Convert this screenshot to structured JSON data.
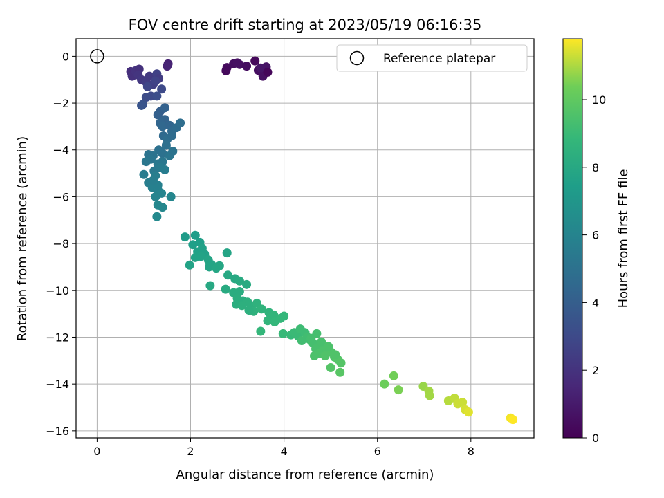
{
  "chart_data": {
    "type": "scatter",
    "title": "FOV centre drift starting at 2023/05/19 06:16:35",
    "xlabel": "Angular distance from reference (arcmin)",
    "ylabel": "Rotation from reference (arcmin)",
    "xlim": [
      -0.45,
      9.35
    ],
    "ylim": [
      -16.3,
      0.75
    ],
    "xticks": [
      0,
      2,
      4,
      6,
      8
    ],
    "yticks": [
      0,
      -2,
      -4,
      -6,
      -8,
      -10,
      -12,
      -14,
      -16
    ],
    "grid": true,
    "legend": {
      "position": "upper-right",
      "entries": [
        "Reference platepar"
      ]
    },
    "colormap": "viridis",
    "colorbar": {
      "label": "Hours from first FF file",
      "range": [
        0,
        11.8
      ],
      "ticks": [
        0,
        2,
        4,
        6,
        8,
        10
      ]
    },
    "reference_point": {
      "x": 0,
      "y": 0,
      "label": "Reference platepar"
    },
    "series": [
      {
        "marker": "filled-circle",
        "points": [
          [
            2.78,
            -0.48,
            0.4
          ],
          [
            2.92,
            -0.32,
            0.5
          ],
          [
            3.05,
            -0.35,
            0.6
          ],
          [
            3.2,
            -0.42,
            0.5
          ],
          [
            2.76,
            -0.62,
            0.3
          ],
          [
            3.0,
            -0.28,
            0.6
          ],
          [
            3.38,
            -0.2,
            0.3
          ],
          [
            3.45,
            -0.6,
            0.5
          ],
          [
            3.58,
            -0.72,
            0.4
          ],
          [
            3.62,
            -0.45,
            0.7
          ],
          [
            3.55,
            -0.85,
            0.6
          ],
          [
            3.5,
            -0.5,
            0.8
          ],
          [
            3.65,
            -0.68,
            0.2
          ],
          [
            1.52,
            -0.32,
            1.3
          ],
          [
            1.5,
            -0.42,
            1.4
          ],
          [
            0.72,
            -0.65,
            1.8
          ],
          [
            0.75,
            -0.85,
            1.9
          ],
          [
            0.82,
            -0.62,
            2.0
          ],
          [
            0.9,
            -0.55,
            1.9
          ],
          [
            0.88,
            -0.8,
            2.1
          ],
          [
            0.95,
            -1.0,
            2.2
          ],
          [
            1.05,
            -1.1,
            2.4
          ],
          [
            1.12,
            -0.85,
            2.3
          ],
          [
            1.2,
            -1.2,
            2.5
          ],
          [
            1.28,
            -0.75,
            2.6
          ],
          [
            1.32,
            -0.95,
            2.4
          ],
          [
            1.25,
            -1.05,
            2.7
          ],
          [
            1.08,
            -1.3,
            2.8
          ],
          [
            1.15,
            -1.7,
            3.0
          ],
          [
            1.05,
            -1.75,
            3.1
          ],
          [
            1.38,
            -1.4,
            3.0
          ],
          [
            1.28,
            -1.7,
            3.2
          ],
          [
            0.98,
            -2.05,
            3.4
          ],
          [
            0.95,
            -2.1,
            3.5
          ],
          [
            1.35,
            -2.35,
            4.0
          ],
          [
            1.45,
            -2.2,
            4.2
          ],
          [
            1.3,
            -2.5,
            4.1
          ],
          [
            1.45,
            -2.7,
            4.3
          ],
          [
            1.35,
            -2.85,
            4.4
          ],
          [
            1.4,
            -3.0,
            4.5
          ],
          [
            1.55,
            -2.95,
            4.4
          ],
          [
            1.6,
            -3.2,
            4.6
          ],
          [
            1.7,
            -3.05,
            4.7
          ],
          [
            1.78,
            -2.85,
            4.8
          ],
          [
            1.42,
            -3.4,
            4.6
          ],
          [
            1.5,
            -3.55,
            4.8
          ],
          [
            1.6,
            -3.4,
            4.7
          ],
          [
            1.48,
            -3.8,
            4.9
          ],
          [
            1.32,
            -4.0,
            5.0
          ],
          [
            1.4,
            -4.15,
            5.0
          ],
          [
            1.2,
            -4.25,
            5.1
          ],
          [
            1.1,
            -4.2,
            5.1
          ],
          [
            1.55,
            -4.25,
            5.2
          ],
          [
            1.62,
            -4.05,
            5.1
          ],
          [
            1.15,
            -4.4,
            5.2
          ],
          [
            1.05,
            -4.5,
            5.3
          ],
          [
            1.3,
            -4.6,
            5.4
          ],
          [
            1.4,
            -4.5,
            5.3
          ],
          [
            1.22,
            -4.9,
            5.4
          ],
          [
            1.35,
            -4.75,
            5.5
          ],
          [
            1.45,
            -4.85,
            5.6
          ],
          [
            1.0,
            -5.05,
            5.6
          ],
          [
            1.25,
            -5.1,
            5.7
          ],
          [
            1.1,
            -5.4,
            5.7
          ],
          [
            1.18,
            -5.6,
            5.8
          ],
          [
            1.3,
            -5.7,
            5.9
          ],
          [
            1.38,
            -5.85,
            6.0
          ],
          [
            1.25,
            -6.0,
            6.0
          ],
          [
            1.58,
            -6.0,
            6.1
          ],
          [
            1.3,
            -6.35,
            6.2
          ],
          [
            1.4,
            -6.45,
            6.2
          ],
          [
            1.28,
            -6.85,
            6.3
          ],
          [
            1.3,
            -5.5,
            5.8
          ],
          [
            1.2,
            -5.3,
            5.7
          ],
          [
            1.88,
            -7.72,
            7.3
          ],
          [
            2.1,
            -7.65,
            7.4
          ],
          [
            2.05,
            -8.05,
            7.5
          ],
          [
            2.2,
            -7.95,
            7.5
          ],
          [
            2.25,
            -8.2,
            7.6
          ],
          [
            2.15,
            -8.35,
            7.6
          ],
          [
            2.3,
            -8.45,
            7.6
          ],
          [
            2.1,
            -8.6,
            7.7
          ],
          [
            2.22,
            -8.55,
            7.7
          ],
          [
            2.38,
            -8.7,
            7.8
          ],
          [
            2.45,
            -8.9,
            7.8
          ],
          [
            1.98,
            -8.92,
            7.7
          ],
          [
            2.4,
            -9.0,
            7.8
          ],
          [
            2.55,
            -9.05,
            7.9
          ],
          [
            2.62,
            -8.95,
            7.9
          ],
          [
            2.78,
            -8.4,
            7.8
          ],
          [
            2.8,
            -9.35,
            8.0
          ],
          [
            2.42,
            -9.8,
            8.0
          ],
          [
            2.95,
            -9.5,
            8.0
          ],
          [
            3.05,
            -9.6,
            8.1
          ],
          [
            3.2,
            -9.75,
            8.1
          ],
          [
            2.75,
            -9.95,
            8.1
          ],
          [
            2.92,
            -10.1,
            8.2
          ],
          [
            3.05,
            -10.05,
            8.2
          ],
          [
            3.0,
            -10.35,
            8.3
          ],
          [
            3.12,
            -10.45,
            8.3
          ],
          [
            3.22,
            -10.5,
            8.4
          ],
          [
            2.98,
            -10.6,
            8.3
          ],
          [
            3.1,
            -10.65,
            8.4
          ],
          [
            3.3,
            -10.7,
            8.4
          ],
          [
            3.42,
            -10.55,
            8.5
          ],
          [
            3.35,
            -10.9,
            8.5
          ],
          [
            3.25,
            -10.85,
            8.4
          ],
          [
            3.52,
            -10.8,
            8.6
          ],
          [
            3.68,
            -10.95,
            8.6
          ],
          [
            3.78,
            -11.05,
            8.7
          ],
          [
            3.65,
            -11.3,
            8.7
          ],
          [
            3.8,
            -11.35,
            8.8
          ],
          [
            3.92,
            -11.2,
            8.8
          ],
          [
            4.0,
            -11.1,
            8.8
          ],
          [
            3.5,
            -11.75,
            8.8
          ],
          [
            3.98,
            -11.85,
            8.9
          ],
          [
            4.15,
            -11.9,
            8.9
          ],
          [
            4.3,
            -11.95,
            9.0
          ],
          [
            4.22,
            -11.8,
            9.0
          ],
          [
            4.35,
            -11.65,
            9.1
          ],
          [
            4.45,
            -11.8,
            9.1
          ],
          [
            4.5,
            -12.0,
            9.2
          ],
          [
            4.38,
            -12.15,
            9.2
          ],
          [
            4.55,
            -12.1,
            9.2
          ],
          [
            4.62,
            -12.25,
            9.3
          ],
          [
            4.7,
            -11.85,
            9.3
          ],
          [
            4.78,
            -12.35,
            9.4
          ],
          [
            4.68,
            -12.5,
            9.4
          ],
          [
            4.85,
            -12.45,
            9.5
          ],
          [
            4.92,
            -12.6,
            9.5
          ],
          [
            4.75,
            -12.7,
            9.5
          ],
          [
            5.02,
            -12.65,
            9.6
          ],
          [
            5.08,
            -12.85,
            9.6
          ],
          [
            4.65,
            -12.8,
            9.5
          ],
          [
            4.88,
            -12.8,
            9.6
          ],
          [
            5.15,
            -12.95,
            9.7
          ],
          [
            5.22,
            -13.1,
            9.7
          ],
          [
            5.0,
            -13.3,
            9.7
          ],
          [
            5.2,
            -13.5,
            9.8
          ],
          [
            4.58,
            -12.05,
            9.3
          ],
          [
            4.8,
            -12.2,
            9.4
          ],
          [
            4.95,
            -12.4,
            9.5
          ],
          [
            5.1,
            -12.75,
            9.6
          ],
          [
            6.15,
            -14.0,
            10.3
          ],
          [
            6.35,
            -13.65,
            10.4
          ],
          [
            6.45,
            -14.25,
            10.5
          ],
          [
            6.98,
            -14.1,
            10.8
          ],
          [
            7.1,
            -14.3,
            10.9
          ],
          [
            7.12,
            -14.5,
            10.9
          ],
          [
            7.52,
            -14.72,
            11.1
          ],
          [
            7.65,
            -14.6,
            11.2
          ],
          [
            7.72,
            -14.85,
            11.3
          ],
          [
            7.82,
            -14.78,
            11.3
          ],
          [
            7.88,
            -15.1,
            11.4
          ],
          [
            7.95,
            -15.2,
            11.5
          ],
          [
            8.85,
            -15.45,
            11.7
          ],
          [
            8.9,
            -15.52,
            11.8
          ]
        ]
      }
    ]
  }
}
